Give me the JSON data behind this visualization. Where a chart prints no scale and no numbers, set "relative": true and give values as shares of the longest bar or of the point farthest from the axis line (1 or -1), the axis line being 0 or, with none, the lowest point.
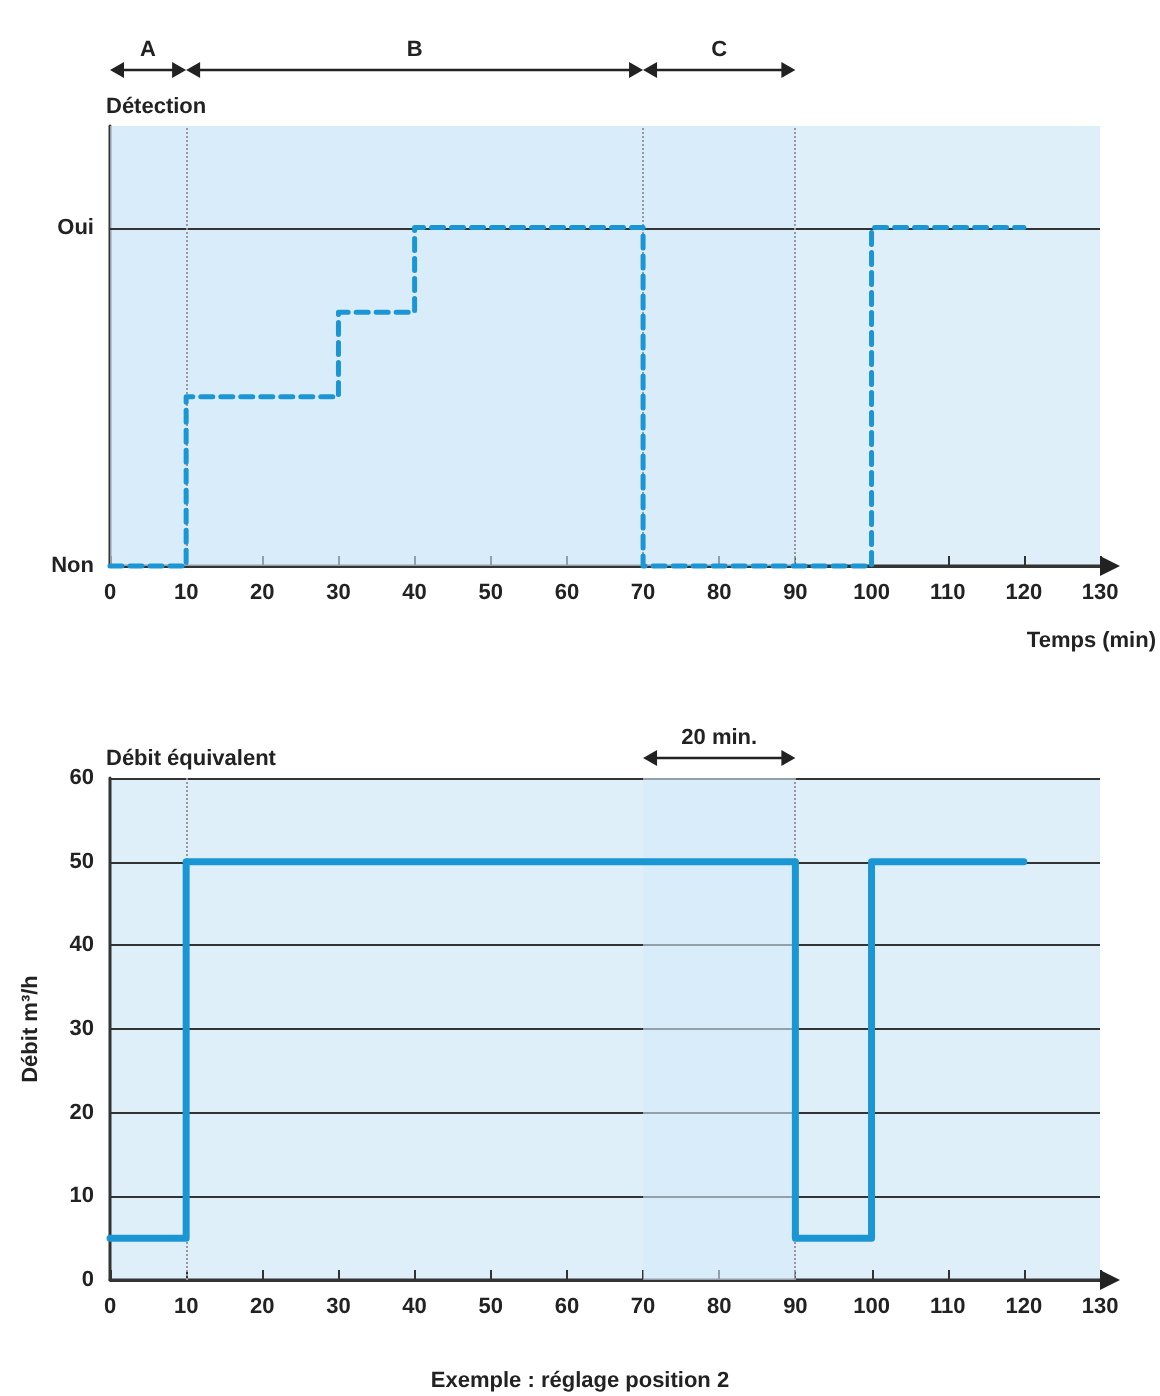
{
  "chart_data": [
    {
      "type": "step",
      "relative": true,
      "title": "Détection",
      "xlabel": "Temps (min)",
      "x": [
        0,
        10,
        30,
        40,
        70,
        100,
        120
      ],
      "values": [
        0,
        0.5,
        0.75,
        1,
        0,
        1,
        1
      ],
      "color": "#1a96d4",
      "line_style": "dashed",
      "marker": "none",
      "xlim": [
        0,
        130
      ],
      "xticks": [
        0,
        10,
        20,
        30,
        40,
        50,
        60,
        70,
        80,
        90,
        100,
        110,
        120,
        130
      ],
      "ref_lines": [
        {
          "axis": "y",
          "value": 0,
          "label": "Non",
          "color": "#333333",
          "line_style": "solid"
        },
        {
          "axis": "y",
          "value": 1,
          "label": "Oui",
          "color": "#333333",
          "line_style": "solid"
        },
        {
          "axis": "x",
          "value": 10,
          "color": "#999999",
          "line_style": "dotted"
        },
        {
          "axis": "x",
          "value": 70,
          "color": "#999999",
          "line_style": "dotted"
        },
        {
          "axis": "x",
          "value": 90,
          "color": "#999999",
          "line_style": "dotted"
        }
      ],
      "bands": [
        {
          "axis": "x",
          "from": 0,
          "to": 10,
          "label": "A"
        },
        {
          "axis": "x",
          "from": 10,
          "to": 70,
          "label": "B"
        },
        {
          "axis": "x",
          "from": 70,
          "to": 90,
          "label": "C"
        }
      ]
    },
    {
      "type": "step",
      "title": "Débit équivalent",
      "xlabel": "Exemple : réglage position 2",
      "ylabel": "Débit m³/h",
      "x": [
        0,
        10,
        90,
        100,
        120
      ],
      "values": [
        5,
        50,
        5,
        50,
        50
      ],
      "color": "#1a96d4",
      "line_style": "solid",
      "marker": "none",
      "xlim": [
        0,
        130
      ],
      "xticks": [
        0,
        10,
        20,
        30,
        40,
        50,
        60,
        70,
        80,
        90,
        100,
        110,
        120,
        130
      ],
      "ylim": [
        0,
        60
      ],
      "yticks": [
        0,
        10,
        20,
        30,
        40,
        50,
        60
      ],
      "grid": "y",
      "ref_lines": [
        {
          "axis": "x",
          "value": 10,
          "color": "#999999",
          "line_style": "dotted"
        },
        {
          "axis": "x",
          "value": 90,
          "color": "#999999",
          "line_style": "dotted"
        }
      ],
      "bands": [
        {
          "axis": "x",
          "from": 70,
          "to": 90,
          "label": "20 min."
        }
      ]
    }
  ]
}
